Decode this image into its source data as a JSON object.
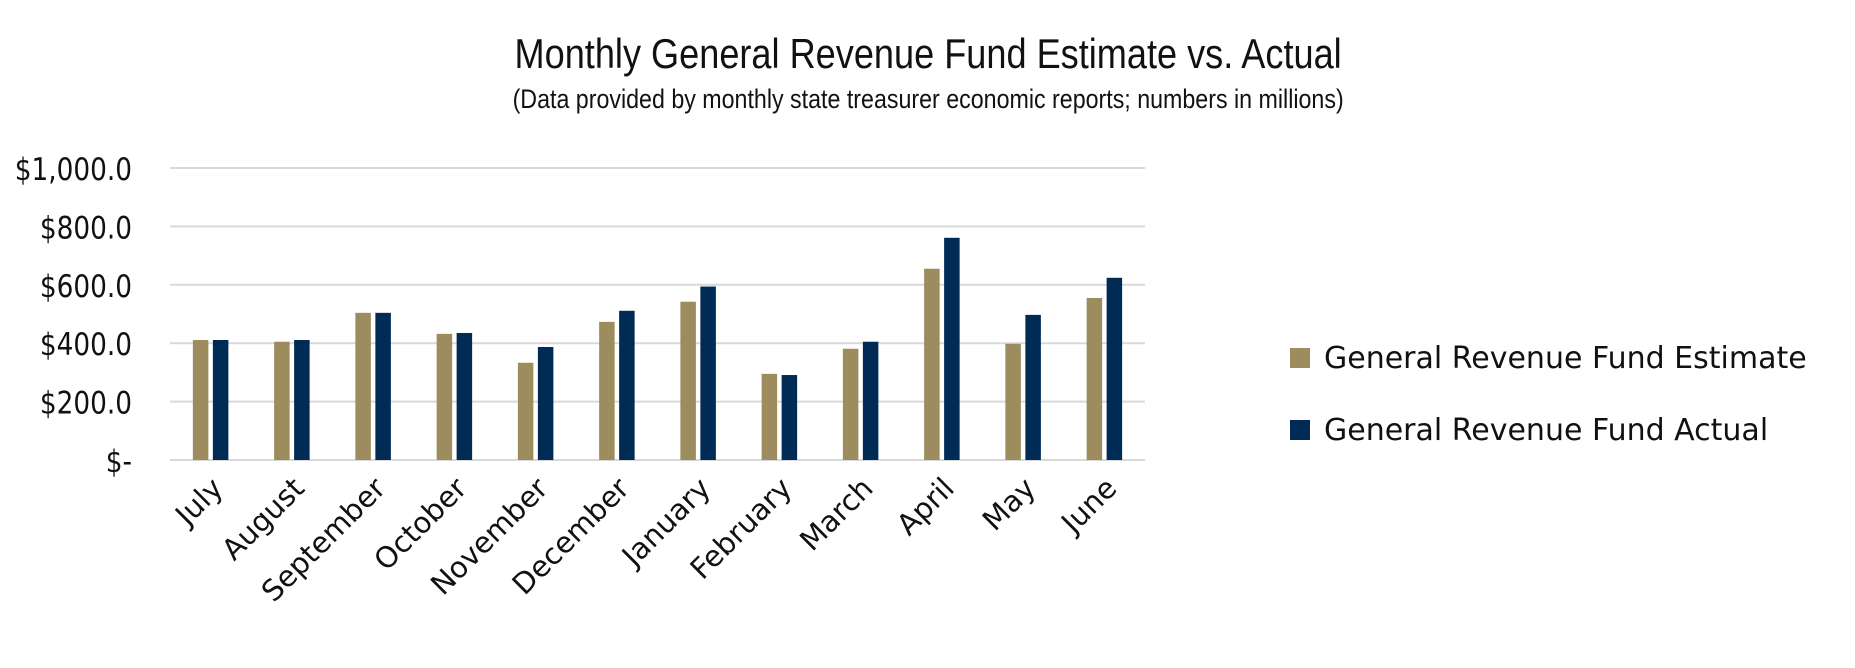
{
  "chart_data": {
    "type": "bar",
    "title": "Monthly General Revenue Fund Estimate vs. Actual",
    "subtitle": "(Data provided by monthly state treasurer economic reports; numbers in millions)",
    "categories": [
      "July",
      "August",
      "September",
      "October",
      "November",
      "December",
      "January",
      "February",
      "March",
      "April",
      "May",
      "June"
    ],
    "series": [
      {
        "name": "General Revenue Fund Estimate",
        "color": "#9C8C5E",
        "values": [
          411,
          405,
          504,
          432,
          333,
          473,
          542,
          295,
          381,
          655,
          398,
          555
        ]
      },
      {
        "name": "General Revenue Fund Actual",
        "color": "#002B55",
        "values": [
          411,
          411,
          504,
          435,
          387,
          511,
          594,
          291,
          405,
          761,
          497,
          624
        ]
      }
    ],
    "ylim": [
      0,
      1000
    ],
    "yticks": [
      0,
      200,
      400,
      600,
      800,
      1000
    ],
    "ytick_labels": [
      "$-",
      "$200.0",
      "$400.0",
      "$600.0",
      "$800.0",
      "$1,000.0"
    ],
    "grid": true,
    "legend": "right"
  }
}
